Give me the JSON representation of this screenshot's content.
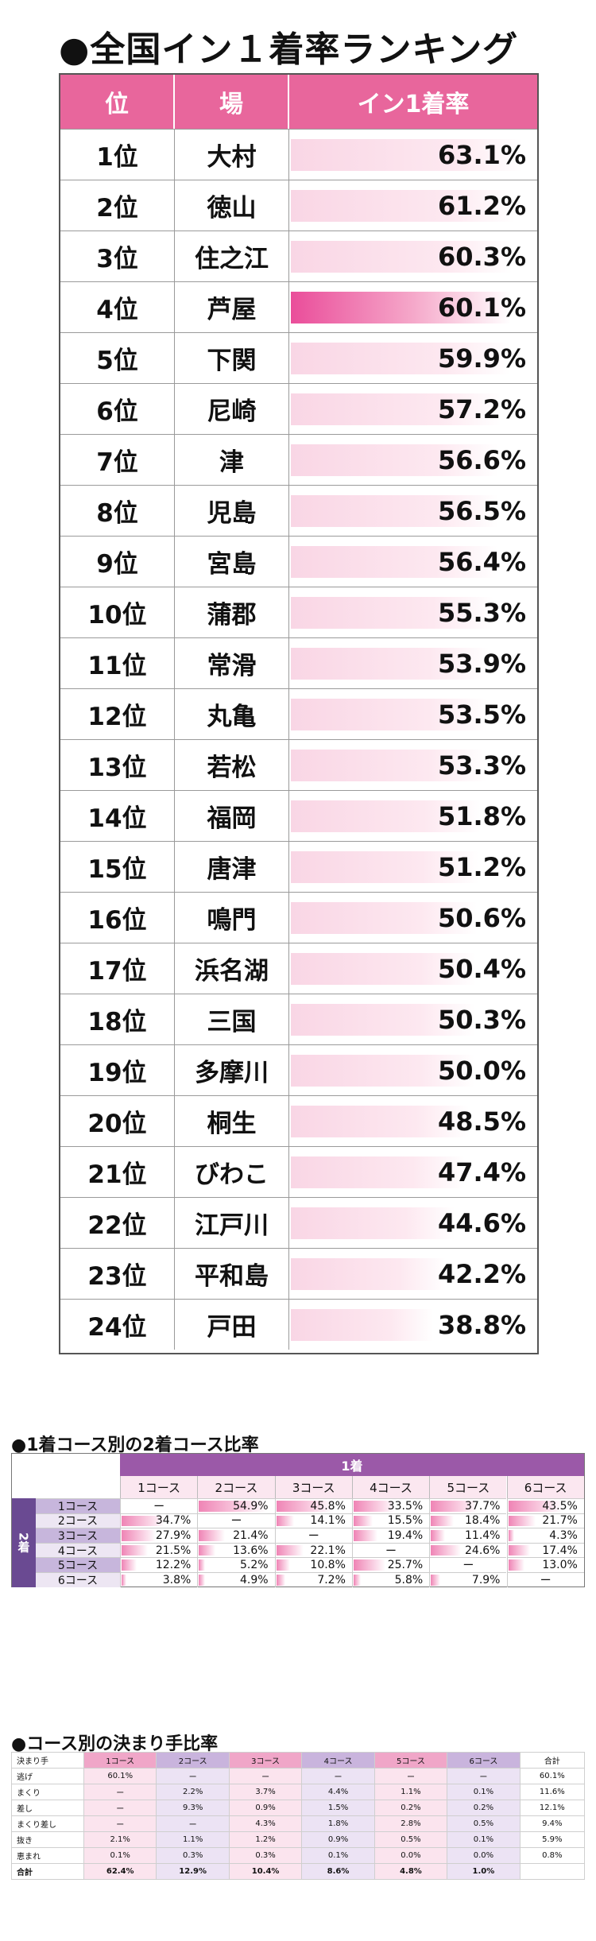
{
  "ranking": {
    "title": "●全国イン１着率ランキング",
    "headers": [
      "位",
      "場",
      "イン1着率"
    ],
    "highlight_rank": 4,
    "rows": [
      {
        "rank": "1位",
        "venue": "大村",
        "rate": "63.1%",
        "value": 63.1
      },
      {
        "rank": "2位",
        "venue": "徳山",
        "rate": "61.2%",
        "value": 61.2
      },
      {
        "rank": "3位",
        "venue": "住之江",
        "rate": "60.3%",
        "value": 60.3
      },
      {
        "rank": "4位",
        "venue": "芦屋",
        "rate": "60.1%",
        "value": 60.1
      },
      {
        "rank": "5位",
        "venue": "下関",
        "rate": "59.9%",
        "value": 59.9
      },
      {
        "rank": "6位",
        "venue": "尼崎",
        "rate": "57.2%",
        "value": 57.2
      },
      {
        "rank": "7位",
        "venue": "津",
        "rate": "56.6%",
        "value": 56.6
      },
      {
        "rank": "8位",
        "venue": "児島",
        "rate": "56.5%",
        "value": 56.5
      },
      {
        "rank": "9位",
        "venue": "宮島",
        "rate": "56.4%",
        "value": 56.4
      },
      {
        "rank": "10位",
        "venue": "蒲郡",
        "rate": "55.3%",
        "value": 55.3
      },
      {
        "rank": "11位",
        "venue": "常滑",
        "rate": "53.9%",
        "value": 53.9
      },
      {
        "rank": "12位",
        "venue": "丸亀",
        "rate": "53.5%",
        "value": 53.5
      },
      {
        "rank": "13位",
        "venue": "若松",
        "rate": "53.3%",
        "value": 53.3
      },
      {
        "rank": "14位",
        "venue": "福岡",
        "rate": "51.8%",
        "value": 51.8
      },
      {
        "rank": "15位",
        "venue": "唐津",
        "rate": "51.2%",
        "value": 51.2
      },
      {
        "rank": "16位",
        "venue": "鳴門",
        "rate": "50.6%",
        "value": 50.6
      },
      {
        "rank": "17位",
        "venue": "浜名湖",
        "rate": "50.4%",
        "value": 50.4
      },
      {
        "rank": "18位",
        "venue": "三国",
        "rate": "50.3%",
        "value": 50.3
      },
      {
        "rank": "19位",
        "venue": "多摩川",
        "rate": "50.0%",
        "value": 50.0
      },
      {
        "rank": "20位",
        "venue": "桐生",
        "rate": "48.5%",
        "value": 48.5
      },
      {
        "rank": "21位",
        "venue": "びわこ",
        "rate": "47.4%",
        "value": 47.4
      },
      {
        "rank": "22位",
        "venue": "江戸川",
        "rate": "44.6%",
        "value": 44.6
      },
      {
        "rank": "23位",
        "venue": "平和島",
        "rate": "42.2%",
        "value": 42.2
      },
      {
        "rank": "24位",
        "venue": "戸田",
        "rate": "38.8%",
        "value": 38.8
      }
    ]
  },
  "course2": {
    "title": "●1着コース別の2着コース比率",
    "top_header": "1着",
    "side_header": "2着",
    "columns": [
      "1コース",
      "2コース",
      "3コース",
      "4コース",
      "5コース",
      "6コース"
    ],
    "rows": [
      {
        "label": "1コース",
        "cells": [
          "ー",
          "54.9%",
          "45.8%",
          "33.5%",
          "37.7%",
          "43.5%"
        ],
        "values": [
          null,
          54.9,
          45.8,
          33.5,
          37.7,
          43.5
        ]
      },
      {
        "label": "2コース",
        "cells": [
          "34.7%",
          "ー",
          "14.1%",
          "15.5%",
          "18.4%",
          "21.7%"
        ],
        "values": [
          34.7,
          null,
          14.1,
          15.5,
          18.4,
          21.7
        ]
      },
      {
        "label": "3コース",
        "cells": [
          "27.9%",
          "21.4%",
          "ー",
          "19.4%",
          "11.4%",
          "4.3%"
        ],
        "values": [
          27.9,
          21.4,
          null,
          19.4,
          11.4,
          4.3
        ]
      },
      {
        "label": "4コース",
        "cells": [
          "21.5%",
          "13.6%",
          "22.1%",
          "ー",
          "24.6%",
          "17.4%"
        ],
        "values": [
          21.5,
          13.6,
          22.1,
          null,
          24.6,
          17.4
        ]
      },
      {
        "label": "5コース",
        "cells": [
          "12.2%",
          "5.2%",
          "10.8%",
          "25.7%",
          "ー",
          "13.0%"
        ],
        "values": [
          12.2,
          5.2,
          10.8,
          25.7,
          null,
          13.0
        ]
      },
      {
        "label": "6コース",
        "cells": [
          "3.8%",
          "4.9%",
          "7.2%",
          "5.8%",
          "7.9%",
          "ー"
        ],
        "values": [
          3.8,
          4.9,
          7.2,
          5.8,
          7.9,
          null
        ]
      }
    ]
  },
  "kimarite": {
    "title": "●コース別の決まり手比率",
    "header": [
      "決まり手",
      "1コース",
      "2コース",
      "3コース",
      "4コース",
      "5コース",
      "6コース",
      "合計"
    ],
    "rows": [
      [
        "逃げ",
        "60.1%",
        "ー",
        "ー",
        "ー",
        "ー",
        "ー",
        "60.1%"
      ],
      [
        "まくり",
        "ー",
        "2.2%",
        "3.7%",
        "4.4%",
        "1.1%",
        "0.1%",
        "11.6%"
      ],
      [
        "差し",
        "ー",
        "9.3%",
        "0.9%",
        "1.5%",
        "0.2%",
        "0.2%",
        "12.1%"
      ],
      [
        "まくり差し",
        "ー",
        "ー",
        "4.3%",
        "1.8%",
        "2.8%",
        "0.5%",
        "9.4%"
      ],
      [
        "抜き",
        "2.1%",
        "1.1%",
        "1.2%",
        "0.9%",
        "0.5%",
        "0.1%",
        "5.9%"
      ],
      [
        "恵まれ",
        "0.1%",
        "0.3%",
        "0.3%",
        "0.1%",
        "0.0%",
        "0.0%",
        "0.8%"
      ],
      [
        "合計",
        "62.4%",
        "12.9%",
        "10.4%",
        "8.6%",
        "4.8%",
        "1.0%",
        ""
      ]
    ]
  }
}
